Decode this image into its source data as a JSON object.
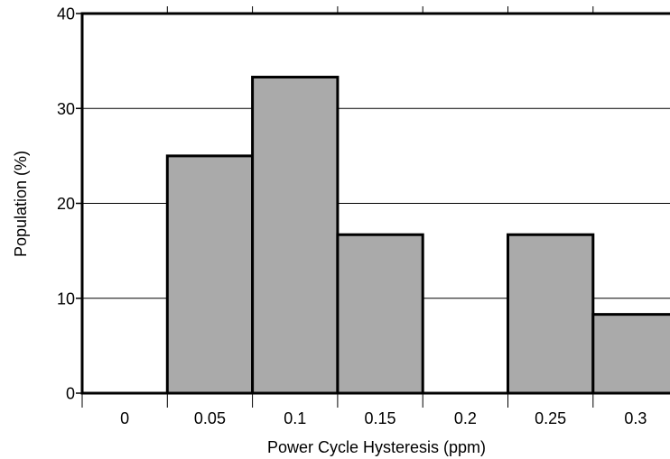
{
  "chart_data": {
    "type": "bar",
    "title": "",
    "xlabel": "Power Cycle Hysteresis (ppm)",
    "ylabel": "Population (%)",
    "categories": [
      "0",
      "0.05",
      "0.1",
      "0.15",
      "0.2",
      "0.25",
      "0.3"
    ],
    "values": [
      0,
      25,
      33.3,
      16.7,
      0,
      16.7,
      8.3
    ],
    "ylim": [
      0,
      40
    ],
    "yticks": [
      "0",
      "10",
      "20",
      "30",
      "40"
    ],
    "grid": "horizontal",
    "legend": "none",
    "colors": {
      "bar_fill": "#aaaaaa",
      "bar_stroke": "#000000",
      "grid": "#000000"
    }
  }
}
